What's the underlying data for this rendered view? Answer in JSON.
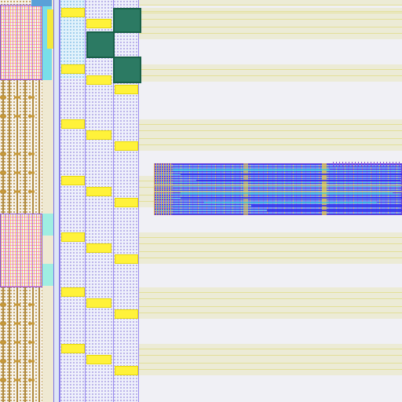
{
  "layout_view": {
    "background_color": "#f0f0f5",
    "row_band_color": "#ecebd6",
    "pad_color": "#fff23a",
    "macro_color": "#2c7a63",
    "route_colors": [
      "#2a1ff0",
      "#33d4e0",
      "#c43ad6",
      "#ffd23c",
      "#7b46dc"
    ],
    "icons": {
      "standard_cell_column": "dotted-cell-column",
      "io_pad": "yellow-pad",
      "hard_macro": "teal-macro",
      "routed_block": "dense-routing-block"
    }
  }
}
